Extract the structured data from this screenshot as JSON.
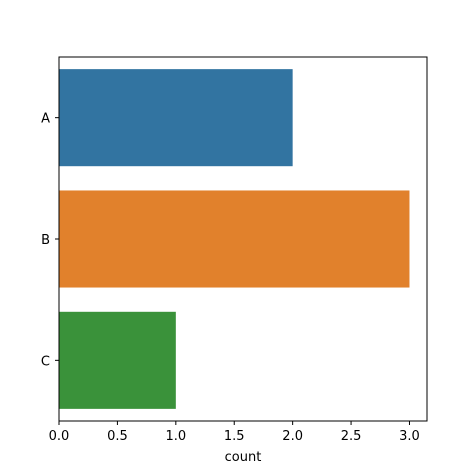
{
  "chart_data": {
    "type": "bar",
    "orientation": "horizontal",
    "categories": [
      "A",
      "B",
      "C"
    ],
    "values": [
      2,
      3,
      1
    ],
    "colors": [
      "#3274a1",
      "#e1812c",
      "#3a923a"
    ],
    "title": "",
    "xlabel": "count",
    "ylabel": "",
    "xlim": [
      0,
      3.15
    ],
    "xticks": [
      "0.0",
      "0.5",
      "1.0",
      "1.5",
      "2.0",
      "2.5",
      "3.0"
    ],
    "grid": false,
    "legend": "none"
  }
}
